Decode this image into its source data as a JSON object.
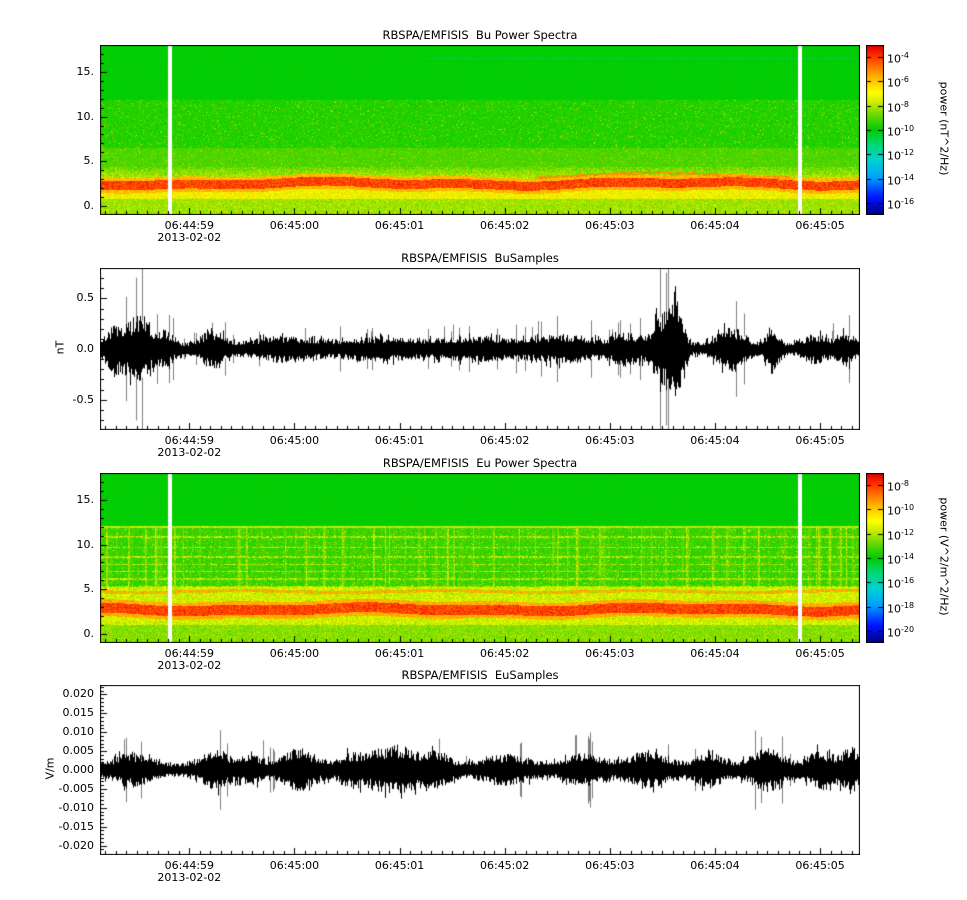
{
  "x_axis": {
    "tick_labels": [
      "06:44:59",
      "06:45:00",
      "06:45:01",
      "06:45:02",
      "06:45:03",
      "06:45:04",
      "06:45:05"
    ],
    "tick_seconds": [
      59,
      60,
      61,
      62,
      63,
      64,
      65
    ],
    "start_seconds": 58.15,
    "end_seconds": 65.38,
    "minor_tick_seconds": 0.1,
    "date_label": "2013-02-02"
  },
  "chart_data": [
    {
      "type": "heatmap",
      "title": "RBSPA/EMFISIS  Bu Power Spectra",
      "ylim": [
        -1,
        18
      ],
      "y_ticks": [
        0,
        5,
        10,
        15
      ],
      "y_tick_labels": [
        "0.",
        "5.",
        "10.",
        "15."
      ],
      "colorbar": {
        "unit_label": "power (nT^2/Hz)",
        "tick_exponents": [
          -4,
          -6,
          -8,
          -10,
          -12,
          -14,
          -16
        ],
        "exp_range": [
          -3,
          -17
        ]
      },
      "features": {
        "uniform_green_above_y": 12,
        "intense_band_center_y": 2.5,
        "intense_band_halfwidth_y": 0.5,
        "secondary_wisp_y": 3.45,
        "faint_dark_line_y": 16.5,
        "white_gaps": [
          0.0895,
          0.918
        ],
        "vertical_streaks": false
      },
      "seed": 101
    },
    {
      "type": "line",
      "title": "RBSPA/EMFISIS  BuSamples",
      "ylabel": "nT",
      "ylim": [
        -0.8,
        0.8
      ],
      "y_ticks": [
        0.5,
        0.0,
        -0.5
      ],
      "y_tick_labels": [
        "0.5",
        "0.0",
        "-0.5"
      ],
      "y_minor_step": 0.1,
      "baseline_amplitude": 0.055,
      "spike_probability": 0.05,
      "bursts": [
        {
          "t": 58.32,
          "amp": 0.2,
          "sigma": 0.1
        },
        {
          "t": 58.55,
          "amp": 0.27,
          "sigma": 0.09
        },
        {
          "t": 58.78,
          "amp": 0.13,
          "sigma": 0.07
        },
        {
          "t": 59.22,
          "amp": 0.14,
          "sigma": 0.1
        },
        {
          "t": 59.9,
          "amp": 0.08,
          "sigma": 0.25
        },
        {
          "t": 60.8,
          "amp": 0.07,
          "sigma": 0.35
        },
        {
          "t": 61.8,
          "amp": 0.075,
          "sigma": 0.35
        },
        {
          "t": 62.6,
          "amp": 0.09,
          "sigma": 0.25
        },
        {
          "t": 63.15,
          "amp": 0.11,
          "sigma": 0.12
        },
        {
          "t": 63.52,
          "amp": 0.34,
          "sigma": 0.1
        },
        {
          "t": 63.65,
          "amp": 0.26,
          "sigma": 0.05
        },
        {
          "t": 64.15,
          "amp": 0.17,
          "sigma": 0.12
        },
        {
          "t": 64.55,
          "amp": 0.2,
          "sigma": 0.05
        },
        {
          "t": 64.95,
          "amp": 0.1,
          "sigma": 0.1
        },
        {
          "t": 65.25,
          "amp": 0.11,
          "sigma": 0.08
        }
      ],
      "seed": 202
    },
    {
      "type": "heatmap",
      "title": "RBSPA/EMFISIS  Eu Power Spectra",
      "ylim": [
        -1,
        18
      ],
      "y_ticks": [
        0,
        5,
        10,
        15
      ],
      "y_tick_labels": [
        "0.",
        "5.",
        "10.",
        "15."
      ],
      "colorbar": {
        "unit_label": "power (V^2/m^2/Hz)",
        "tick_exponents": [
          -8,
          -10,
          -12,
          -14,
          -16,
          -18,
          -20
        ],
        "exp_range": [
          -7,
          -21
        ]
      },
      "features": {
        "uniform_green_above_y": 12,
        "intense_band_center_y": 2.75,
        "intense_band_halfwidth_y": 0.55,
        "secondary_band_y": 4.75,
        "faint_horizontal_lines_y": [
          5.35,
          6.15,
          6.95,
          7.75,
          8.6,
          9.7,
          10.85
        ],
        "boundary_yellow_line_y": 12.0,
        "white_gaps": [
          0.0895,
          0.918
        ],
        "vertical_streaks": true
      },
      "seed": 303
    },
    {
      "type": "line",
      "title": "RBSPA/EMFISIS  EuSamples",
      "ylabel": "V/m",
      "ylim": [
        -0.0225,
        0.0225
      ],
      "y_ticks": [
        0.02,
        0.015,
        0.01,
        0.005,
        0.0,
        -0.005,
        -0.01,
        -0.015,
        -0.02
      ],
      "y_tick_labels": [
        "0.020",
        "0.015",
        "0.010",
        "0.005",
        "0.000",
        "-0.005",
        "-0.010",
        "-0.015",
        "-0.020"
      ],
      "y_minor_step": 0.001,
      "baseline_amplitude": 0.0017,
      "spike_probability": 0.035,
      "bursts": [
        {
          "t": 58.45,
          "amp": 0.003,
          "sigma": 0.15
        },
        {
          "t": 59.25,
          "amp": 0.0036,
          "sigma": 0.12
        },
        {
          "t": 59.6,
          "amp": 0.0024,
          "sigma": 0.1
        },
        {
          "t": 60.05,
          "amp": 0.0042,
          "sigma": 0.14
        },
        {
          "t": 60.55,
          "amp": 0.0028,
          "sigma": 0.12
        },
        {
          "t": 60.95,
          "amp": 0.0052,
          "sigma": 0.18
        },
        {
          "t": 61.35,
          "amp": 0.003,
          "sigma": 0.12
        },
        {
          "t": 62.0,
          "amp": 0.0026,
          "sigma": 0.2
        },
        {
          "t": 62.75,
          "amp": 0.0028,
          "sigma": 0.15
        },
        {
          "t": 63.35,
          "amp": 0.0032,
          "sigma": 0.18
        },
        {
          "t": 63.95,
          "amp": 0.0032,
          "sigma": 0.12
        },
        {
          "t": 64.5,
          "amp": 0.0042,
          "sigma": 0.14
        },
        {
          "t": 65.0,
          "amp": 0.0038,
          "sigma": 0.1
        },
        {
          "t": 65.3,
          "amp": 0.0045,
          "sigma": 0.09
        }
      ],
      "seed": 404
    }
  ]
}
